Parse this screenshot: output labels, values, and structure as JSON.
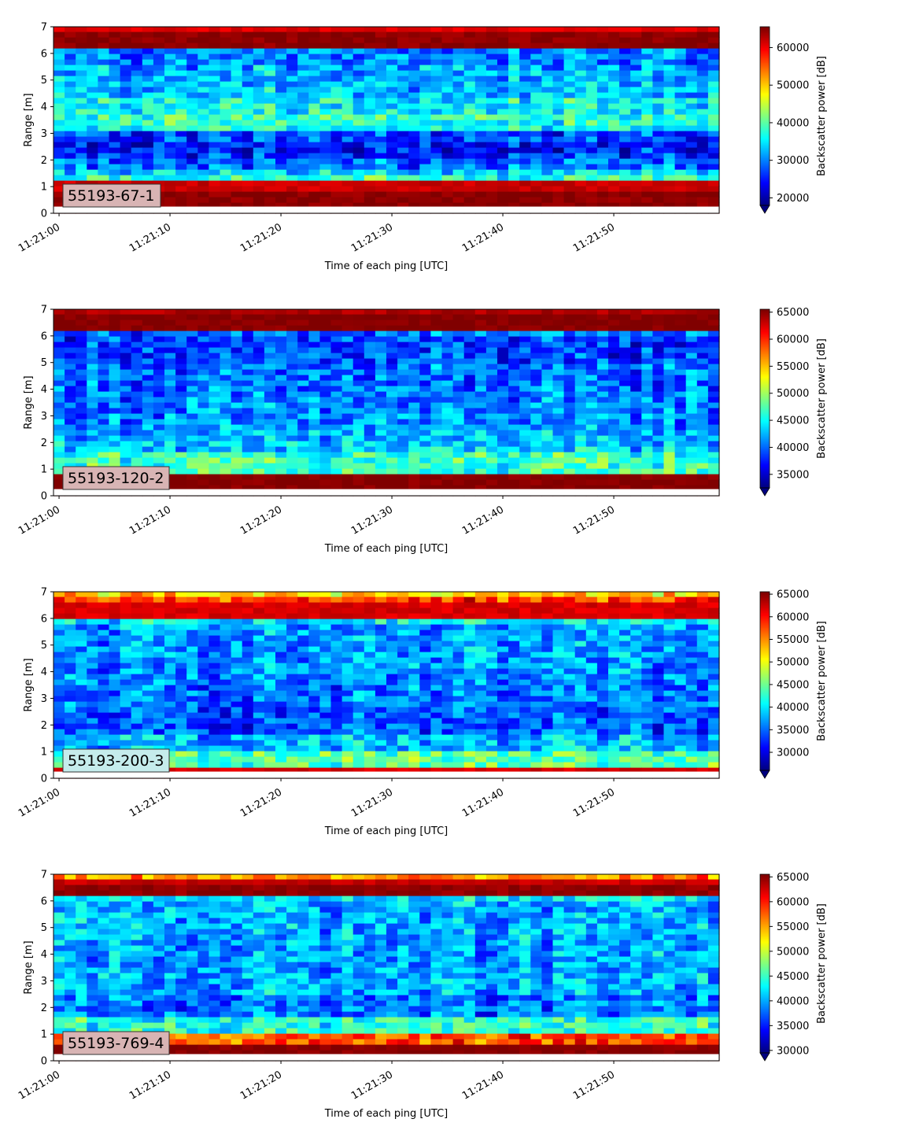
{
  "chart_data": [
    {
      "type": "heatmap",
      "label": "55193-67-1",
      "label_box_color": "#d8b4b4",
      "xlabel": "Time of each ping [UTC]",
      "ylabel": "Range [m]",
      "colorbar_label": "Backscatter power [dB]",
      "xticks": [
        "11:21:00",
        "11:21:10",
        "11:21:20",
        "11:21:30",
        "11:21:40",
        "11:21:50"
      ],
      "yticks": [
        0,
        1,
        2,
        3,
        4,
        5,
        6,
        7
      ],
      "ylim": [
        0,
        7
      ],
      "xlim_seconds": [
        -0.5,
        59.5
      ],
      "color_range": [
        18000,
        65535
      ],
      "colorbar_ticks": [
        20000,
        30000,
        40000,
        50000,
        60000
      ],
      "range_profile": [
        [
          0,
          0.25,
          65535
        ],
        [
          0.25,
          0.8,
          65000
        ],
        [
          0.8,
          1.2,
          62000
        ],
        [
          1.2,
          1.4,
          38000
        ],
        [
          1.4,
          1.6,
          34000
        ],
        [
          1.6,
          2.0,
          29000
        ],
        [
          2.0,
          2.3,
          26000
        ],
        [
          2.3,
          2.7,
          25000
        ],
        [
          2.7,
          3.0,
          27000
        ],
        [
          3.0,
          3.4,
          36000
        ],
        [
          3.4,
          3.8,
          38000
        ],
        [
          3.8,
          4.3,
          36000
        ],
        [
          4.3,
          5.0,
          33000
        ],
        [
          5.0,
          5.6,
          32000
        ],
        [
          5.6,
          6.1,
          30000
        ],
        [
          6.1,
          6.15,
          48000
        ],
        [
          6.15,
          6.8,
          65000
        ],
        [
          6.8,
          7.0,
          61000
        ]
      ]
    },
    {
      "type": "heatmap",
      "label": "55193-120-2",
      "label_box_color": "#d8b4b4",
      "xlabel": "Time of each ping [UTC]",
      "ylabel": "Range [m]",
      "colorbar_label": "Backscatter power [dB]",
      "xticks": [
        "11:21:00",
        "11:21:10",
        "11:21:20",
        "11:21:30",
        "11:21:40",
        "11:21:50"
      ],
      "yticks": [
        0,
        1,
        2,
        3,
        4,
        5,
        6,
        7
      ],
      "ylim": [
        0,
        7
      ],
      "xlim_seconds": [
        -0.5,
        59.5
      ],
      "color_range": [
        32500,
        65535
      ],
      "colorbar_ticks": [
        35000,
        40000,
        45000,
        50000,
        55000,
        60000,
        65000
      ],
      "range_profile": [
        [
          0,
          0.25,
          65535
        ],
        [
          0.25,
          0.8,
          65535
        ],
        [
          0.8,
          0.9,
          60000
        ],
        [
          0.9,
          1.6,
          46500
        ],
        [
          1.6,
          2.0,
          43000
        ],
        [
          2.0,
          2.6,
          42000
        ],
        [
          2.6,
          3.2,
          41000
        ],
        [
          3.2,
          4.0,
          40500
        ],
        [
          4.0,
          5.0,
          40000
        ],
        [
          5.0,
          6.0,
          38500
        ],
        [
          6.0,
          6.1,
          40000
        ],
        [
          6.1,
          6.15,
          50000
        ],
        [
          6.15,
          6.8,
          65535
        ],
        [
          6.8,
          7.0,
          64000
        ]
      ]
    },
    {
      "type": "heatmap",
      "label": "55193-200-3",
      "label_box_color": "#c5ecec",
      "xlabel": "Time of each ping [UTC]",
      "ylabel": "Range [m]",
      "colorbar_label": "Backscatter power [dB]",
      "xticks": [
        "11:21:00",
        "11:21:10",
        "11:21:20",
        "11:21:30",
        "11:21:40",
        "11:21:50"
      ],
      "yticks": [
        0,
        1,
        2,
        3,
        4,
        5,
        6,
        7
      ],
      "ylim": [
        0,
        7
      ],
      "xlim_seconds": [
        -0.5,
        59.5
      ],
      "color_range": [
        26000,
        65535
      ],
      "colorbar_ticks": [
        30000,
        35000,
        40000,
        45000,
        50000,
        55000,
        60000,
        65000
      ],
      "range_profile": [
        [
          0,
          0.25,
          64000
        ],
        [
          0.25,
          0.4,
          62000
        ],
        [
          0.4,
          1.0,
          44000
        ],
        [
          1.0,
          1.6,
          38000
        ],
        [
          1.6,
          2.6,
          34000
        ],
        [
          2.6,
          3.5,
          35000
        ],
        [
          3.5,
          4.5,
          36000
        ],
        [
          4.5,
          5.8,
          36500
        ],
        [
          5.8,
          5.95,
          40000
        ],
        [
          5.95,
          6.0,
          50000
        ],
        [
          6.0,
          6.6,
          62000
        ],
        [
          6.6,
          6.8,
          58000
        ],
        [
          6.8,
          7.0,
          52000
        ]
      ]
    },
    {
      "type": "heatmap",
      "label": "55193-769-4",
      "label_box_color": "#d8b4b4",
      "xlabel": "Time of each ping [UTC]",
      "ylabel": "Range [m]",
      "colorbar_label": "Backscatter power [dB]",
      "xticks": [
        "11:21:00",
        "11:21:10",
        "11:21:20",
        "11:21:30",
        "11:21:40",
        "11:21:50"
      ],
      "yticks": [
        0,
        1,
        2,
        3,
        4,
        5,
        6,
        7
      ],
      "ylim": [
        0,
        7
      ],
      "xlim_seconds": [
        -0.5,
        59.5
      ],
      "color_range": [
        29500,
        65535
      ],
      "colorbar_ticks": [
        30000,
        35000,
        40000,
        45000,
        50000,
        55000,
        60000,
        65000
      ],
      "range_profile": [
        [
          0,
          0.25,
          65535
        ],
        [
          0.25,
          0.65,
          65535
        ],
        [
          0.65,
          0.95,
          58000
        ],
        [
          0.95,
          1.6,
          44000
        ],
        [
          1.6,
          2.5,
          38000
        ],
        [
          2.5,
          3.5,
          40000
        ],
        [
          3.5,
          4.5,
          39500
        ],
        [
          4.5,
          6.0,
          40000
        ],
        [
          6.0,
          6.1,
          42000
        ],
        [
          6.1,
          6.15,
          52000
        ],
        [
          6.15,
          6.6,
          65000
        ],
        [
          6.6,
          6.8,
          63000
        ],
        [
          6.8,
          7.0,
          56000
        ]
      ]
    }
  ]
}
